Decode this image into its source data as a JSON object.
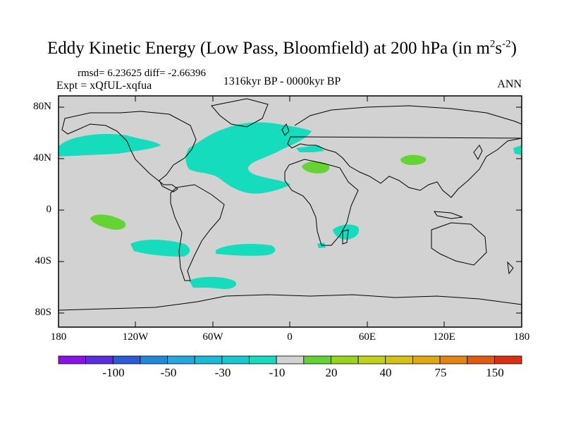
{
  "title": {
    "main": "Eddy Kinetic Energy (Low Pass, Bloomfield) at 200 hPa (in m",
    "sup1": "2",
    "mid": "s",
    "sup2": "-2",
    "end": ")"
  },
  "stats": "rmsd= 6.23625 diff= -2.66396",
  "experiment": "Expt = xQfUL-xqfua",
  "period": "1316kyr BP - 0000kyr BP",
  "season": "ANN",
  "latitude_labels": [
    "80N",
    "40N",
    "0",
    "40S",
    "80S"
  ],
  "longitude_labels": [
    "180",
    "120W",
    "60W",
    "0",
    "60E",
    "120E",
    "180"
  ],
  "colorbar": {
    "colors": [
      "#8a12e8",
      "#5a2ee0",
      "#2f5ad6",
      "#1e8ad8",
      "#25a8df",
      "#18bcd6",
      "#14ccd0",
      "#14dcbc",
      "#d2d2d2",
      "#64d434",
      "#98d41e",
      "#bed21a",
      "#d6c214",
      "#e0a812",
      "#e48412",
      "#e05a10",
      "#dc2e10"
    ],
    "labels": [
      "-100",
      "-50",
      "-30",
      "-10",
      "20",
      "40",
      "75",
      "150"
    ]
  },
  "anomaly_colors": {
    "negative": "#14dcbc",
    "positive": "#64d434",
    "land": "#000000",
    "background": "#d2d2d2"
  }
}
